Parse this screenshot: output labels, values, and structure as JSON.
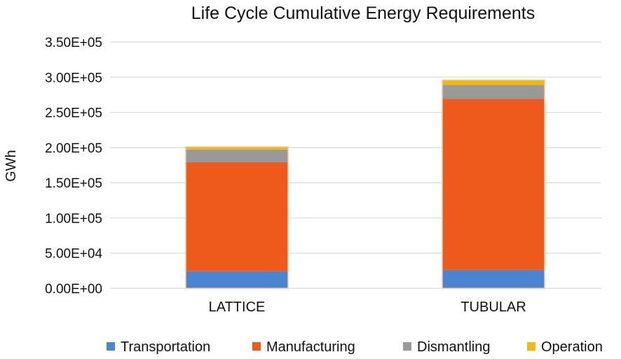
{
  "chart_data": {
    "type": "bar",
    "stacked": true,
    "title": "Life Cycle Cumulative Energy Requirements",
    "xlabel": "",
    "ylabel": "GWh",
    "ylim": [
      0,
      350000
    ],
    "yticks": [
      0,
      50000,
      100000,
      150000,
      200000,
      250000,
      300000,
      350000
    ],
    "ytick_labels": [
      "0.00E+00",
      "5.00E+04",
      "1.00E+05",
      "1.50E+05",
      "2.00E+05",
      "2.50E+05",
      "3.00E+05",
      "3.50E+05"
    ],
    "categories": [
      "LATTICE",
      "TUBULAR"
    ],
    "series": [
      {
        "name": "Transportation",
        "color": "#4a86d0",
        "values": [
          24000,
          26000
        ]
      },
      {
        "name": "Manufacturing",
        "color": "#ee5a1c",
        "values": [
          155000,
          243000
        ]
      },
      {
        "name": "Dismantling",
        "color": "#999999",
        "values": [
          18000,
          20000
        ]
      },
      {
        "name": "Operation",
        "color": "#f5b800",
        "values": [
          4000,
          7000
        ]
      }
    ],
    "grid": true,
    "legend_position": "bottom"
  }
}
